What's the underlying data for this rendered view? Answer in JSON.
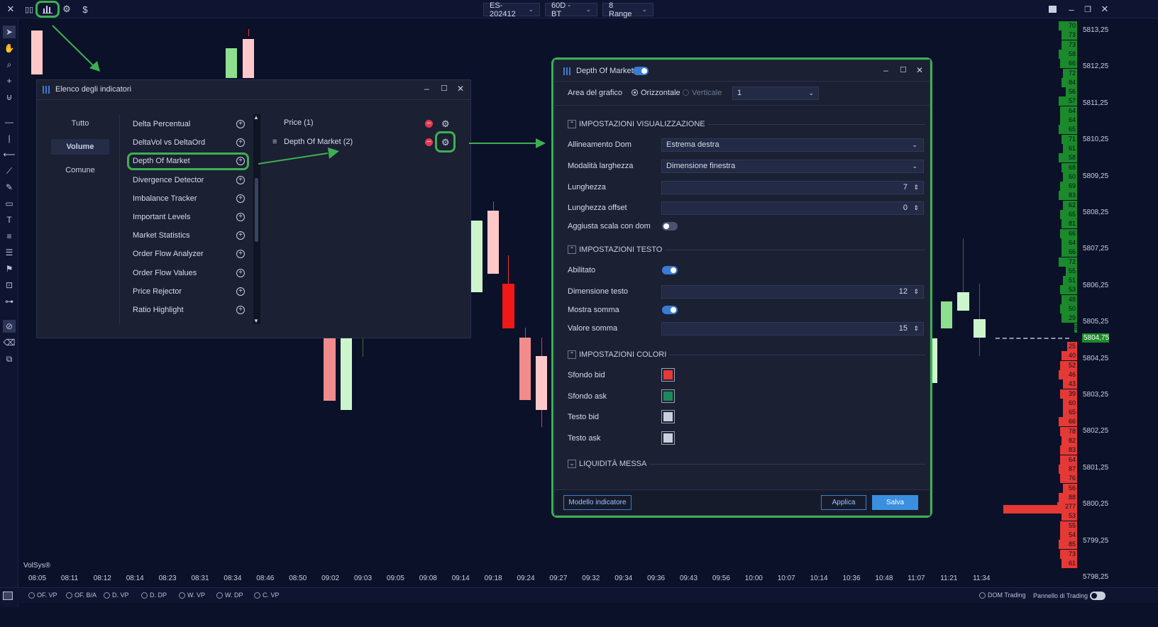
{
  "topbar": {
    "symbol": "ES-202412",
    "timeframe": "60D - BT",
    "range": "8 Range",
    "dollar": "$"
  },
  "chart": {
    "watermark": "VolSys®",
    "current_price": "5804,75",
    "price_labels": [
      "5813,25",
      "5812,25",
      "5811,25",
      "5810,25",
      "5809,25",
      "5808,25",
      "5807,25",
      "5806,25",
      "5805,25",
      "5804,25",
      "5803,25",
      "5802,25",
      "5801,25",
      "5800,25",
      "5799,25",
      "5798,25"
    ],
    "time_labels": [
      "08:05",
      "08:11",
      "08:12",
      "08:14",
      "08:23",
      "08:31",
      "08:34",
      "08:46",
      "08:50",
      "09:02",
      "09:03",
      "09:05",
      "09:08",
      "09:14",
      "09:18",
      "09:24",
      "09:27",
      "09:32",
      "09:34",
      "09:36",
      "09:43",
      "09:56",
      "10:00",
      "10:07",
      "10:14",
      "10:36",
      "10:48",
      "11:07",
      "11:21",
      "11:34"
    ],
    "dom_ask": [
      "70",
      "73",
      "73",
      "58",
      "66",
      "72",
      "84",
      "56",
      "57",
      "64",
      "64",
      "65",
      "71",
      "61",
      "58",
      "68",
      "60",
      "69",
      "83",
      "62",
      "65",
      "81",
      "66",
      "64",
      "66",
      "72",
      "55",
      "51",
      "53",
      "48",
      "50",
      "29",
      "5"
    ],
    "dom_bid": [
      "25",
      "40",
      "52",
      "46",
      "43",
      "39",
      "60",
      "65",
      "66",
      "78",
      "82",
      "83",
      "64",
      "87",
      "76",
      "56",
      "88",
      "277",
      "53",
      "55",
      "54",
      "85",
      "73",
      "61"
    ]
  },
  "bottombar": {
    "items": [
      "OF. VP",
      "OF. B/A",
      "D. VP",
      "D. DP",
      "W. VP",
      "W. DP",
      "C. VP"
    ],
    "dom_trading": "DOM Trading",
    "panel": "Pannello di Trading"
  },
  "indicators_dialog": {
    "title": "Elenco degli indicatori",
    "categories": [
      "Tutto",
      "Volume",
      "Comune"
    ],
    "items": [
      "Delta Percentual",
      "DeltaVol vs DeltaOrd",
      "Depth Of Market",
      "Divergence Detector",
      "Imbalance Tracker",
      "Important Levels",
      "Market Statistics",
      "Order Flow Analyzer",
      "Order Flow Values",
      "Price Rejector",
      "Ratio Highlight"
    ],
    "active": [
      "Price (1)",
      "Depth Of Market (2)"
    ]
  },
  "dom_dialog": {
    "title": "Depth Of Market",
    "area_label": "Area del grafico",
    "orient_h": "Orizzontale",
    "orient_v": "Verticale",
    "area_value": "1",
    "sec_display": "IMPOSTAZIONI VISUALIZZAZIONE",
    "align_label": "Allineamento Dom",
    "align_value": "Estrema destra",
    "width_mode_label": "Modalità larghezza",
    "width_mode_value": "Dimensione finestra",
    "length_label": "Lunghezza",
    "length_value": "7",
    "offset_label": "Lunghezza offset",
    "offset_value": "0",
    "adjust_label": "Aggiusta scala con dom",
    "sec_text": "IMPOSTAZIONI TESTO",
    "enabled_label": "Abilitato",
    "text_size_label": "Dimensione testo",
    "text_size_value": "12",
    "show_sum_label": "Mostra somma",
    "sum_value_label": "Valore somma",
    "sum_value": "15",
    "sec_colors": "IMPOSTAZIONI COLORI",
    "bid_bg_label": "Sfondo bid",
    "ask_bg_label": "Sfondo ask",
    "bid_text_label": "Testo bid",
    "ask_text_label": "Testo ask",
    "sec_liquidity": "LIQUIDITÀ MESSA",
    "template_btn": "Modello indicatore",
    "apply_btn": "Applica",
    "save_btn": "Salva"
  },
  "colors": {
    "bid_bg": "#e53935",
    "ask_bg": "#1b8a5a",
    "bid_text": "#c9cfdc",
    "ask_text": "#c9cfdc",
    "highlight": "#3cb051",
    "accent": "#3a7bd5"
  }
}
